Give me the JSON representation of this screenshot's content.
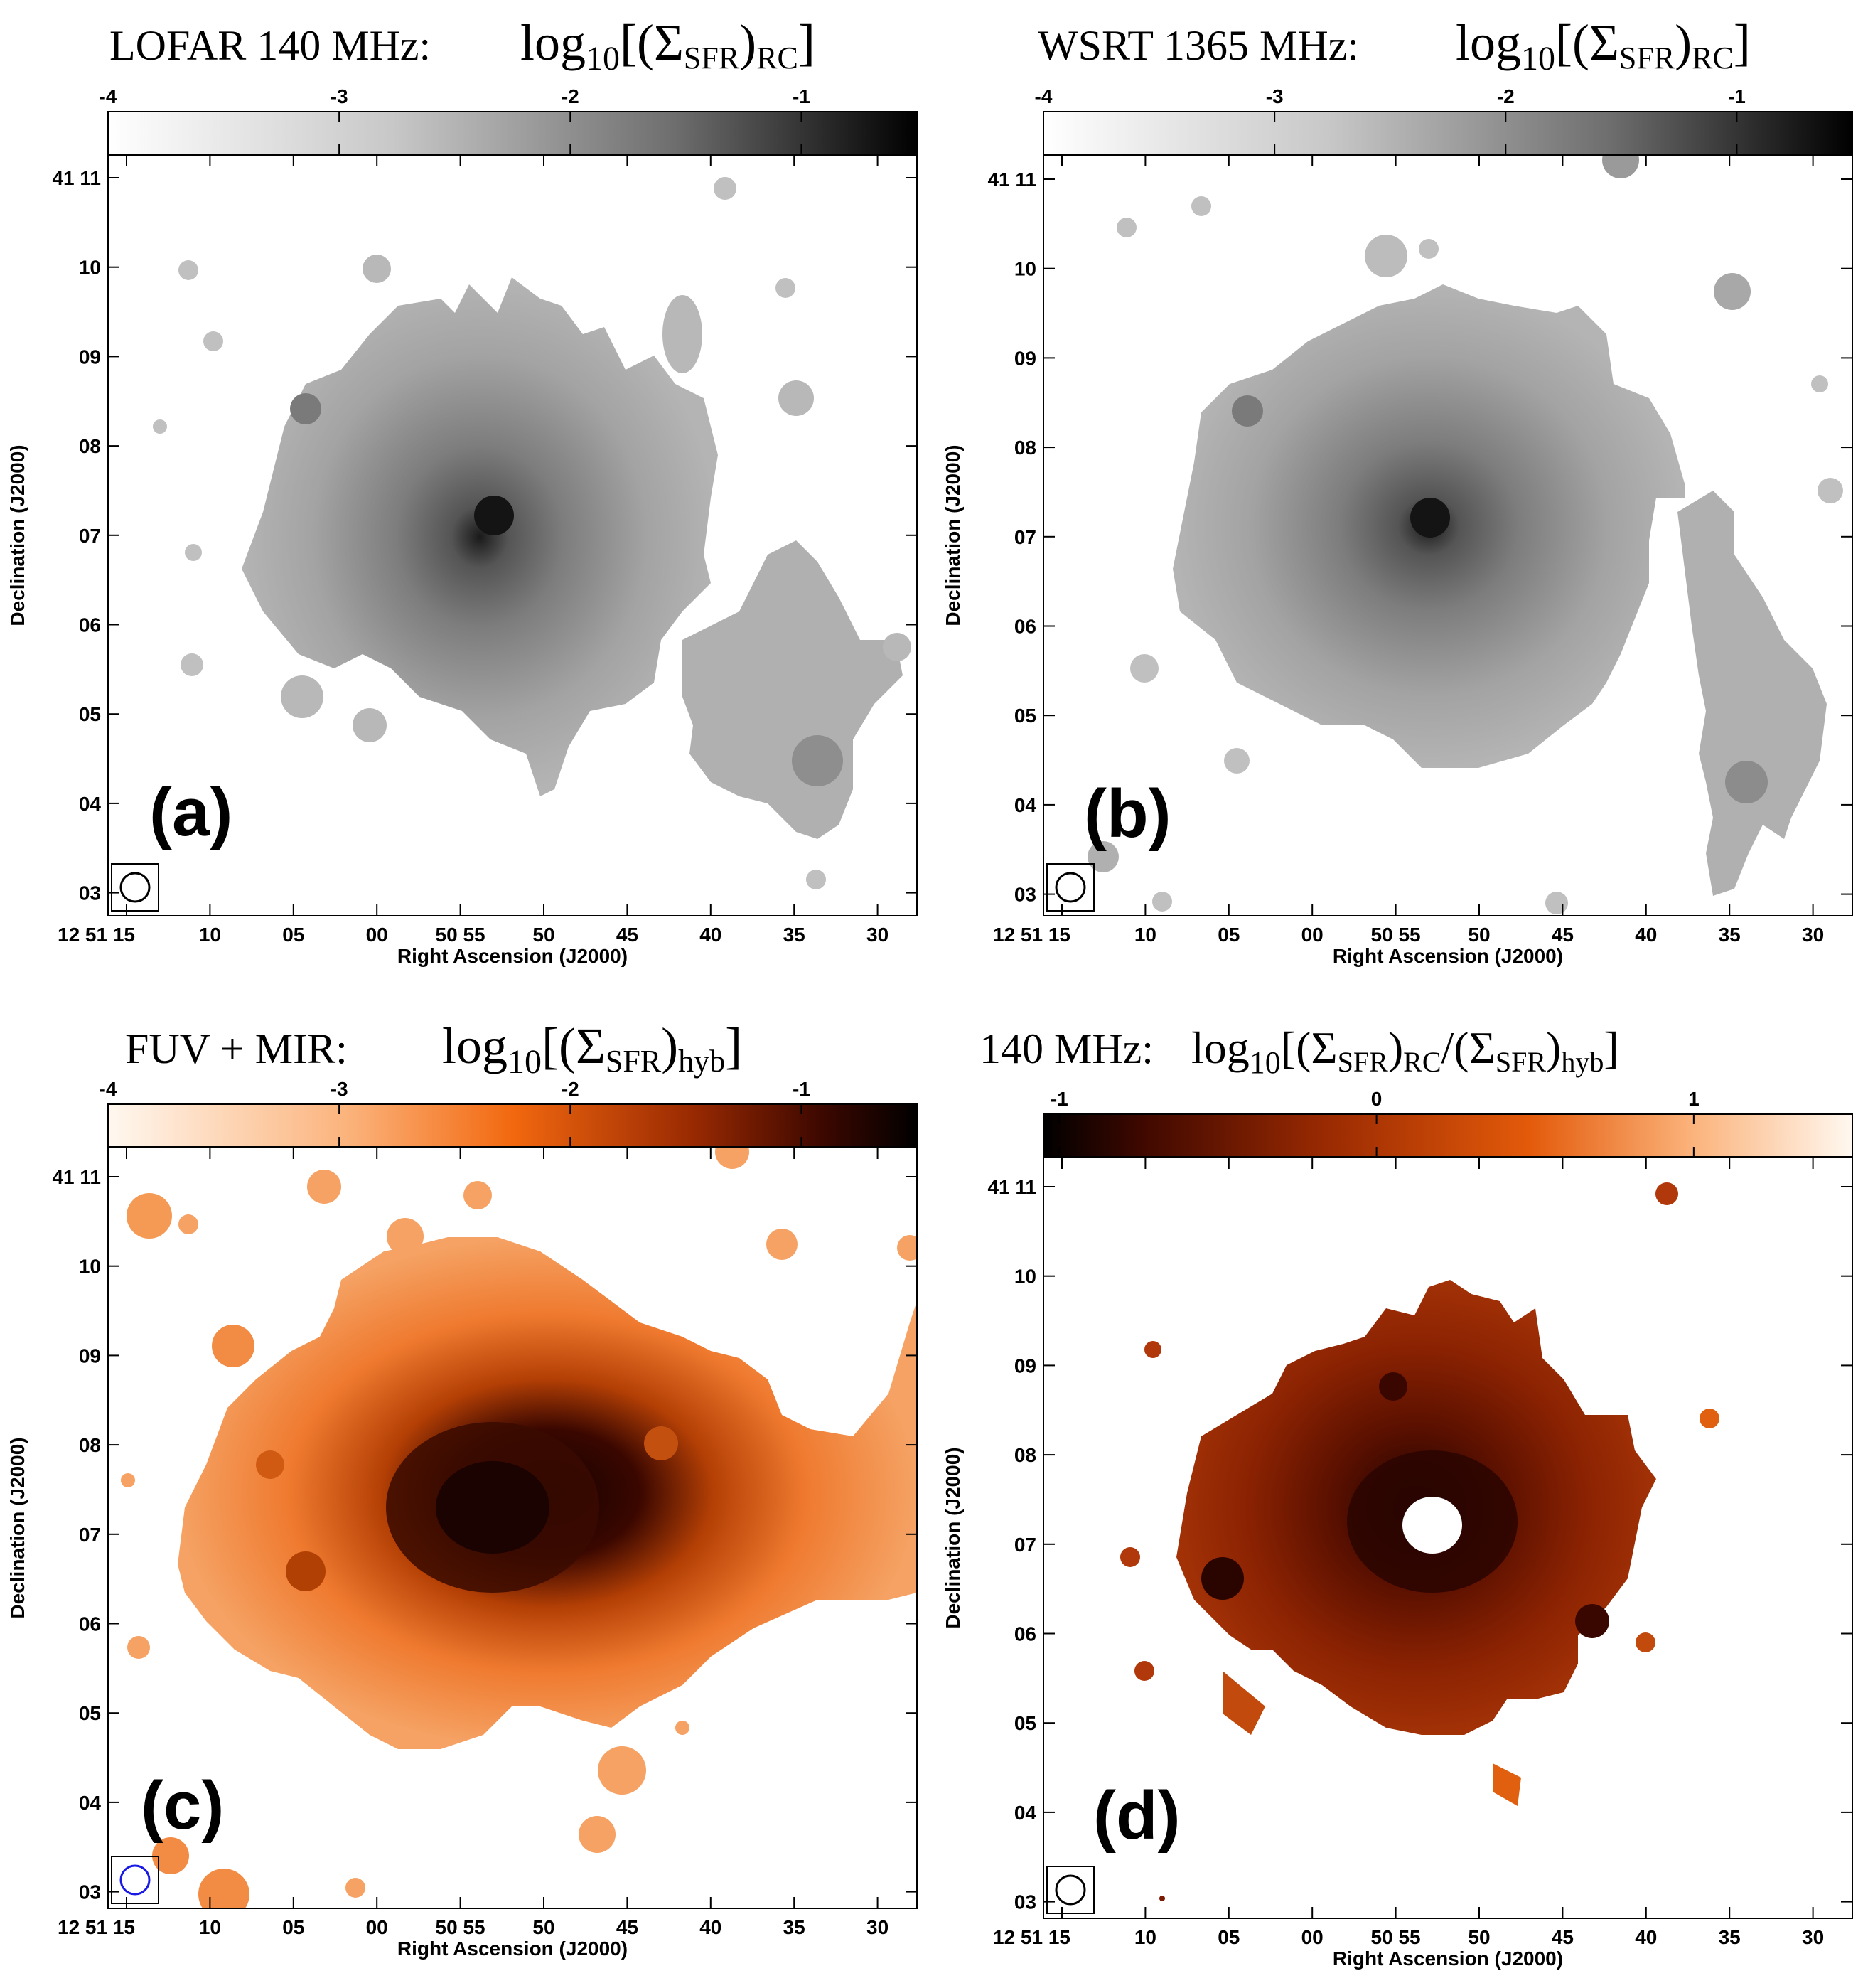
{
  "panels": [
    {
      "id": "a",
      "title": {
        "prefix": "LOFAR 140 MHz:",
        "expr": "log10[(ΣSFR)RC]",
        "parts": {
          "log": "log",
          "logsub": "10",
          "open": "[(Σ",
          "sub1": "SFR",
          "mid": ")",
          "sub2": "RC",
          "tail": "]"
        }
      },
      "panel_label": "(a)",
      "colormap": "gray",
      "colorbar": {
        "ticks": [
          -4,
          -3,
          -2,
          -1
        ],
        "tick_labels": [
          "-4",
          "-3",
          "-2",
          "-1"
        ],
        "range": [
          -4.0,
          -0.5
        ]
      },
      "beam_color": "#000000",
      "shape": "rc"
    },
    {
      "id": "b",
      "title": {
        "prefix": "WSRT 1365 MHz:",
        "expr": "log10[(ΣSFR)RC]",
        "parts": {
          "log": "log",
          "logsub": "10",
          "open": "[(Σ",
          "sub1": "SFR",
          "mid": ")",
          "sub2": "RC",
          "tail": "]"
        }
      },
      "panel_label": "(b)",
      "colormap": "gray",
      "colorbar": {
        "ticks": [
          -4,
          -3,
          -2,
          -1
        ],
        "tick_labels": [
          "-4",
          "-3",
          "-2",
          "-1"
        ],
        "range": [
          -4.0,
          -0.5
        ]
      },
      "beam_color": "#000000",
      "shape": "rc2"
    },
    {
      "id": "c",
      "title": {
        "prefix": "FUV + MIR:",
        "expr": "log10[(ΣSFR)hyb]",
        "parts": {
          "log": "log",
          "logsub": "10",
          "open": "[(Σ",
          "sub1": "SFR",
          "mid": ")",
          "sub2": "hyb",
          "tail": "]"
        }
      },
      "panel_label": "(c)",
      "colormap": "orange",
      "colorbar": {
        "ticks": [
          -4,
          -3,
          -2,
          -1
        ],
        "tick_labels": [
          "-4",
          "-3",
          "-2",
          "-1"
        ],
        "range": [
          -4.0,
          -0.5
        ]
      },
      "beam_color": "#1a1ae6",
      "shape": "hyb"
    },
    {
      "id": "d",
      "title": {
        "prefix": "140 MHz:",
        "expr": "log10[(ΣSFR)RC/(ΣSFR)hyb]",
        "parts": {
          "log": "log",
          "logsub": "10",
          "open": "[(Σ",
          "sub1": "SFR",
          "mid": ")",
          "sub2": "RC",
          "slash": "/(Σ",
          "sub3": "SFR",
          "mid2": ")",
          "sub4": "hyb",
          "tail": "]"
        }
      },
      "panel_label": "(d)",
      "colormap": "orange_rev",
      "colorbar": {
        "ticks": [
          -1,
          0,
          1
        ],
        "tick_labels": [
          "-1",
          "0",
          "1"
        ],
        "range": [
          -1.05,
          1.5
        ]
      },
      "beam_color": "#000000",
      "shape": "ratio"
    }
  ],
  "axes": {
    "xlabel": "Right Ascension (J2000)",
    "ylabel": "Declination (J2000)",
    "x_ticks": [
      {
        "label": "12 51 15"
      },
      {
        "label": "10"
      },
      {
        "label": "05"
      },
      {
        "label": "00"
      },
      {
        "label": "50 55"
      },
      {
        "label": "50"
      },
      {
        "label": "45"
      },
      {
        "label": "40"
      },
      {
        "label": "35"
      },
      {
        "label": "30"
      }
    ],
    "y_ticks": [
      {
        "label": "41 11"
      },
      {
        "label": "10"
      },
      {
        "label": "09"
      },
      {
        "label": "08"
      },
      {
        "label": "07"
      },
      {
        "label": "06"
      },
      {
        "label": "05"
      },
      {
        "label": "04"
      },
      {
        "label": "03"
      }
    ]
  },
  "chart_data": [
    {
      "type": "heatmap",
      "title": "LOFAR 140 MHz: log10[(ΣSFR)RC]",
      "xlabel": "Right Ascension (J2000)",
      "ylabel": "Declination (J2000)",
      "colorbar_range": [
        -4.0,
        -0.5
      ],
      "x_ticks": [
        "12 51 15",
        "10",
        "05",
        "00",
        "50 55",
        "50",
        "45",
        "40",
        "35",
        "30"
      ],
      "y_ticks": [
        "41 11",
        "10",
        "09",
        "08",
        "07",
        "06",
        "05",
        "04",
        "03"
      ],
      "peak_value": -1.2
    },
    {
      "type": "heatmap",
      "title": "WSRT 1365 MHz: log10[(ΣSFR)RC]",
      "xlabel": "Right Ascension (J2000)",
      "ylabel": "Declination (J2000)",
      "colorbar_range": [
        -4.0,
        -0.5
      ],
      "x_ticks": [
        "12 51 15",
        "10",
        "05",
        "00",
        "50 55",
        "50",
        "45",
        "40",
        "35",
        "30"
      ],
      "y_ticks": [
        "41 11",
        "10",
        "09",
        "08",
        "07",
        "06",
        "05",
        "04",
        "03"
      ],
      "peak_value": -1.2
    },
    {
      "type": "heatmap",
      "title": "FUV + MIR: log10[(ΣSFR)hyb]",
      "xlabel": "Right Ascension (J2000)",
      "ylabel": "Declination (J2000)",
      "colorbar_range": [
        -4.0,
        -0.5
      ],
      "x_ticks": [
        "12 51 15",
        "10",
        "05",
        "00",
        "50 55",
        "50",
        "45",
        "40",
        "35",
        "30"
      ],
      "y_ticks": [
        "41 11",
        "10",
        "09",
        "08",
        "07",
        "06",
        "05",
        "04",
        "03"
      ],
      "peak_value": -0.6
    },
    {
      "type": "heatmap",
      "title": "140 MHz: log10[(ΣSFR)RC/(ΣSFR)hyb]",
      "xlabel": "Right Ascension (J2000)",
      "ylabel": "Declination (J2000)",
      "colorbar_range": [
        -1.05,
        1.5
      ],
      "x_ticks": [
        "12 51 15",
        "10",
        "05",
        "00",
        "50 55",
        "50",
        "45",
        "40",
        "35",
        "30"
      ],
      "y_ticks": [
        "41 11",
        "10",
        "09",
        "08",
        "07",
        "06",
        "05",
        "04",
        "03"
      ],
      "peak_value": -1.0
    }
  ]
}
